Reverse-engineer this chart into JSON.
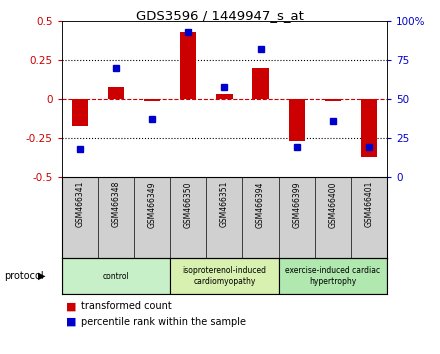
{
  "title": "GDS3596 / 1449947_s_at",
  "samples": [
    "GSM466341",
    "GSM466348",
    "GSM466349",
    "GSM466350",
    "GSM466351",
    "GSM466394",
    "GSM466399",
    "GSM466400",
    "GSM466401"
  ],
  "transformed_count": [
    -0.17,
    0.08,
    -0.01,
    0.43,
    0.03,
    0.2,
    -0.27,
    -0.01,
    -0.37
  ],
  "percentile_rank": [
    18,
    70,
    37,
    93,
    58,
    82,
    19,
    36,
    19
  ],
  "groups": [
    {
      "label": "control",
      "start": 0,
      "end": 3,
      "color": "#c8f0c8"
    },
    {
      "label": "isoproterenol-induced\ncardiomyopathy",
      "start": 3,
      "end": 6,
      "color": "#d8f0b0"
    },
    {
      "label": "exercise-induced cardiac\nhypertrophy",
      "start": 6,
      "end": 9,
      "color": "#b0e8b0"
    }
  ],
  "bar_color": "#cc0000",
  "dot_color": "#0000cc",
  "ylim_left": [
    -0.5,
    0.5
  ],
  "ylim_right": [
    0,
    100
  ],
  "yticks_left": [
    -0.5,
    -0.25,
    0,
    0.25,
    0.5
  ],
  "yticks_right": [
    0,
    25,
    50,
    75,
    100
  ],
  "ytick_labels_left": [
    "-0.5",
    "-0.25",
    "0",
    "0.25",
    "0.5"
  ],
  "ytick_labels_right": [
    "0",
    "25",
    "50",
    "75",
    "100%"
  ],
  "bg_color": "#ffffff",
  "sample_bg": "#d0d0d0",
  "legend_labels": [
    "transformed count",
    "percentile rank within the sample"
  ]
}
